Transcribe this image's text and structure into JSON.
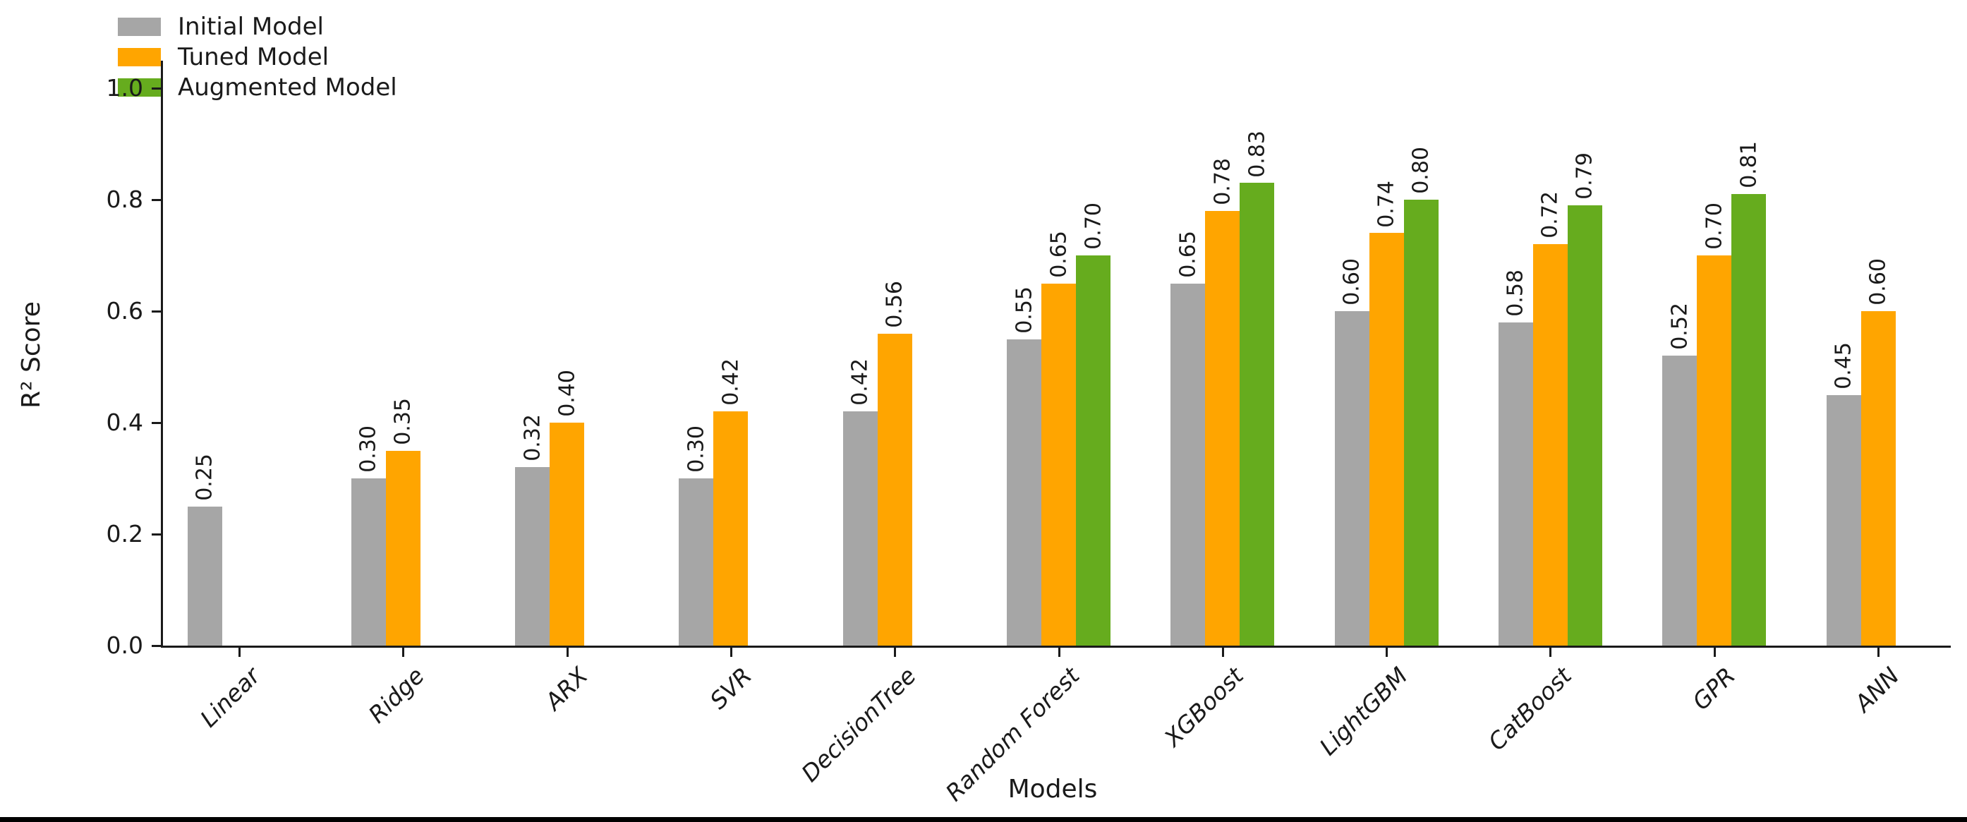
{
  "chart_data": {
    "type": "bar",
    "title": "",
    "xlabel": "Models",
    "ylabel": "R² Score",
    "categories": [
      "Linear",
      "Ridge",
      "ARX",
      "SVR",
      "DecisionTree",
      "Random Forest",
      "XGBoost",
      "LightGBM",
      "CatBoost",
      "GPR",
      "ANN"
    ],
    "series": [
      {
        "name": "Initial Model",
        "color": "#a6a6a6",
        "values": [
          0.25,
          0.3,
          0.32,
          0.3,
          0.42,
          0.55,
          0.65,
          0.6,
          0.58,
          0.52,
          0.45
        ]
      },
      {
        "name": "Tuned Model",
        "color": "#ffa500",
        "values": [
          null,
          0.35,
          0.4,
          0.42,
          0.56,
          0.65,
          0.78,
          0.74,
          0.72,
          0.7,
          0.6
        ]
      },
      {
        "name": "Augmented Model",
        "color": "#66ac1e",
        "values": [
          null,
          null,
          null,
          null,
          null,
          0.7,
          0.83,
          0.8,
          0.79,
          0.81,
          null
        ]
      }
    ],
    "ylim": [
      0.0,
      1.05
    ],
    "yticks": [
      "0.0",
      "0.2",
      "0.4",
      "0.6",
      "0.8",
      "1.0"
    ],
    "grid": false,
    "legend_position": "upper left",
    "bar_label_decimals": 2,
    "bar_labels_rotated_90": true,
    "xtick_labels_rotation_deg": 45,
    "xtick_labels_italic": true,
    "axis_color": "#1a1a1a",
    "background_color": "#ffffff",
    "bottom_edge_color": "#000000"
  }
}
